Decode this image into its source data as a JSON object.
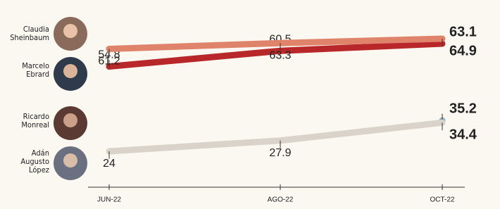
{
  "chart_data": {
    "type": "line",
    "categories": [
      "JUN-22",
      "AGO-22",
      "OCT-22"
    ],
    "series": [
      {
        "name": "Claudia Sheinbaum",
        "color": "#b8282a",
        "values": [
          54.8,
          60.5,
          63.1
        ]
      },
      {
        "name": "Marcelo Ebrard",
        "color": "#e0836b",
        "values": [
          61.2,
          63.3,
          64.9
        ]
      },
      {
        "name": "Ricardo Monreal",
        "color": "#8fb0bd",
        "values": [
          null,
          null,
          35.2
        ]
      },
      {
        "name": "Adán Augusto López",
        "color": "#d9d3c9",
        "values": [
          24,
          27.9,
          34.4
        ]
      }
    ]
  }
}
